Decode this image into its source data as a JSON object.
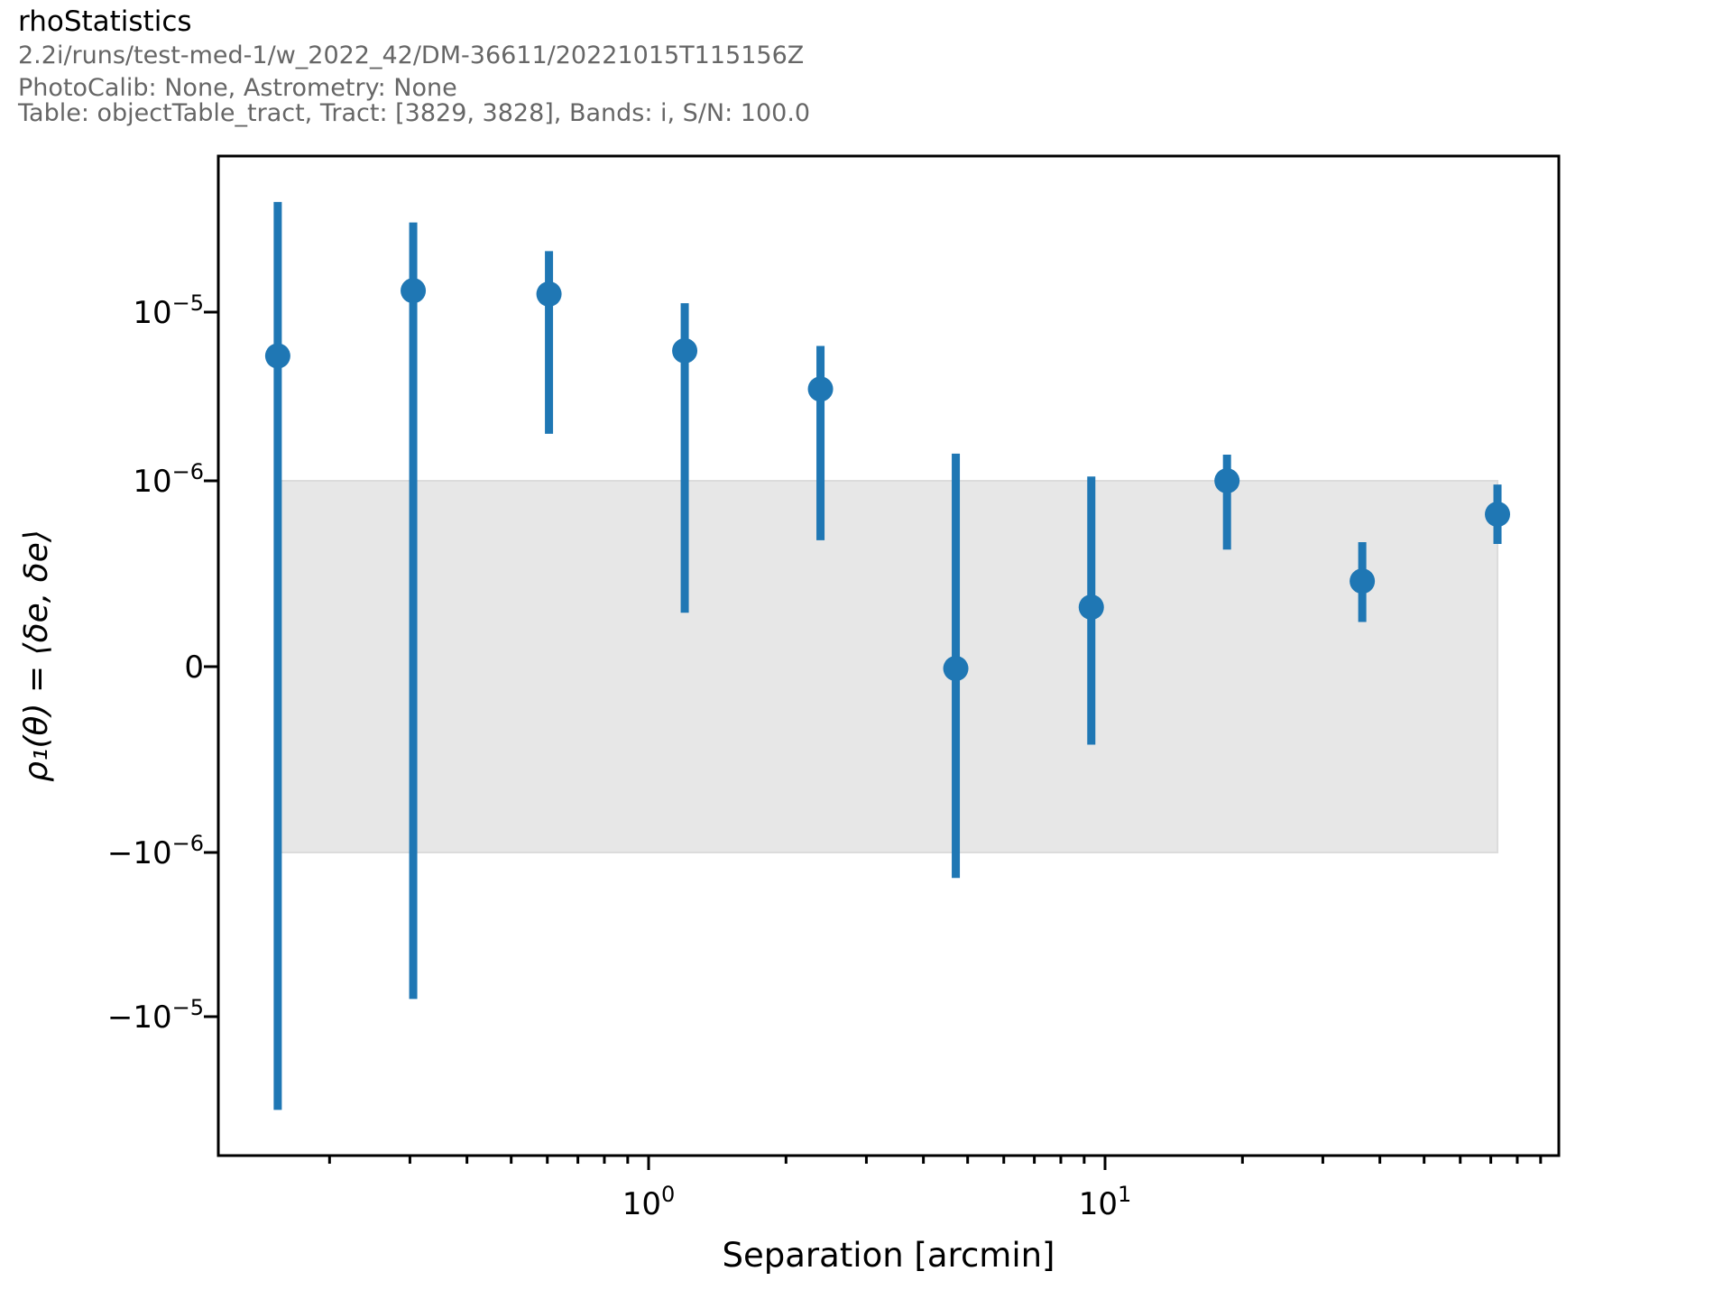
{
  "header": {
    "title": "rhoStatistics",
    "subtitle_lines": [
      "2.2i/runs/test-med-1/w_2022_42/DM-36611/20221015T115156Z",
      "PhotoCalib: None, Astrometry: None",
      "Table: objectTable_tract, Tract: [3829, 3828], Bands: i, S/N: 100.0"
    ]
  },
  "chart_data": {
    "type": "scatter",
    "title": "rhoStatistics",
    "xlabel": "Separation [arcmin]",
    "ylabel": "ρ₁(θ) = ⟨δe, δe⟩",
    "x_scale": "log",
    "y_scale": "symlog",
    "y_linthresh": 1e-06,
    "xlim": [
      0.114,
      98.7
    ],
    "ylim": [
      -6.5e-05,
      8.6e-05
    ],
    "grid": false,
    "legend": "none",
    "marker_color": "#1f77b4",
    "band": {
      "y_min": -1e-06,
      "y_max": 1e-06,
      "x_min": 0.154,
      "x_max": 72.4,
      "fill": "#e7e7e7",
      "edge": "#dcdcdc"
    },
    "x_ticks": [
      {
        "value": 1,
        "base": "10",
        "exp": "0"
      },
      {
        "value": 10,
        "base": "10",
        "exp": "1"
      }
    ],
    "y_ticks": [
      {
        "value": 1e-05,
        "base": "10",
        "exp": "−5"
      },
      {
        "value": 1e-06,
        "base": "10",
        "exp": "−6"
      },
      {
        "value": 0,
        "base": "0",
        "exp": ""
      },
      {
        "value": -1e-06,
        "base": "−10",
        "exp": "−6"
      },
      {
        "value": -1e-05,
        "base": "−10",
        "exp": "−5"
      }
    ],
    "series": [
      {
        "name": "rho1",
        "points": [
          {
            "x": 0.154,
            "y": 5.5e-06,
            "y_lo": -3.7e-05,
            "y_hi": 4.5e-05
          },
          {
            "x": 0.305,
            "y": 1.34e-05,
            "y_lo": -7.8e-06,
            "y_hi": 3.4e-05
          },
          {
            "x": 0.605,
            "y": 1.28e-05,
            "y_lo": 1.9e-06,
            "y_hi": 2.3e-05
          },
          {
            "x": 1.2,
            "y": 5.9e-06,
            "y_lo": 2.9e-07,
            "y_hi": 1.13e-05
          },
          {
            "x": 2.38,
            "y": 3.5e-06,
            "y_lo": 6.8e-07,
            "y_hi": 6.3e-06
          },
          {
            "x": 4.71,
            "y": -1e-08,
            "y_lo": -1.43e-06,
            "y_hi": 1.45e-06
          },
          {
            "x": 9.33,
            "y": 3.2e-07,
            "y_lo": -4.2e-07,
            "y_hi": 1.06e-06
          },
          {
            "x": 18.5,
            "y": 1e-06,
            "y_lo": 6.3e-07,
            "y_hi": 1.43e-06
          },
          {
            "x": 36.6,
            "y": 4.6e-07,
            "y_lo": 2.4e-07,
            "y_hi": 6.7e-07
          },
          {
            "x": 72.4,
            "y": 8.2e-07,
            "y_lo": 6.6e-07,
            "y_hi": 9.8e-07
          }
        ]
      }
    ]
  }
}
